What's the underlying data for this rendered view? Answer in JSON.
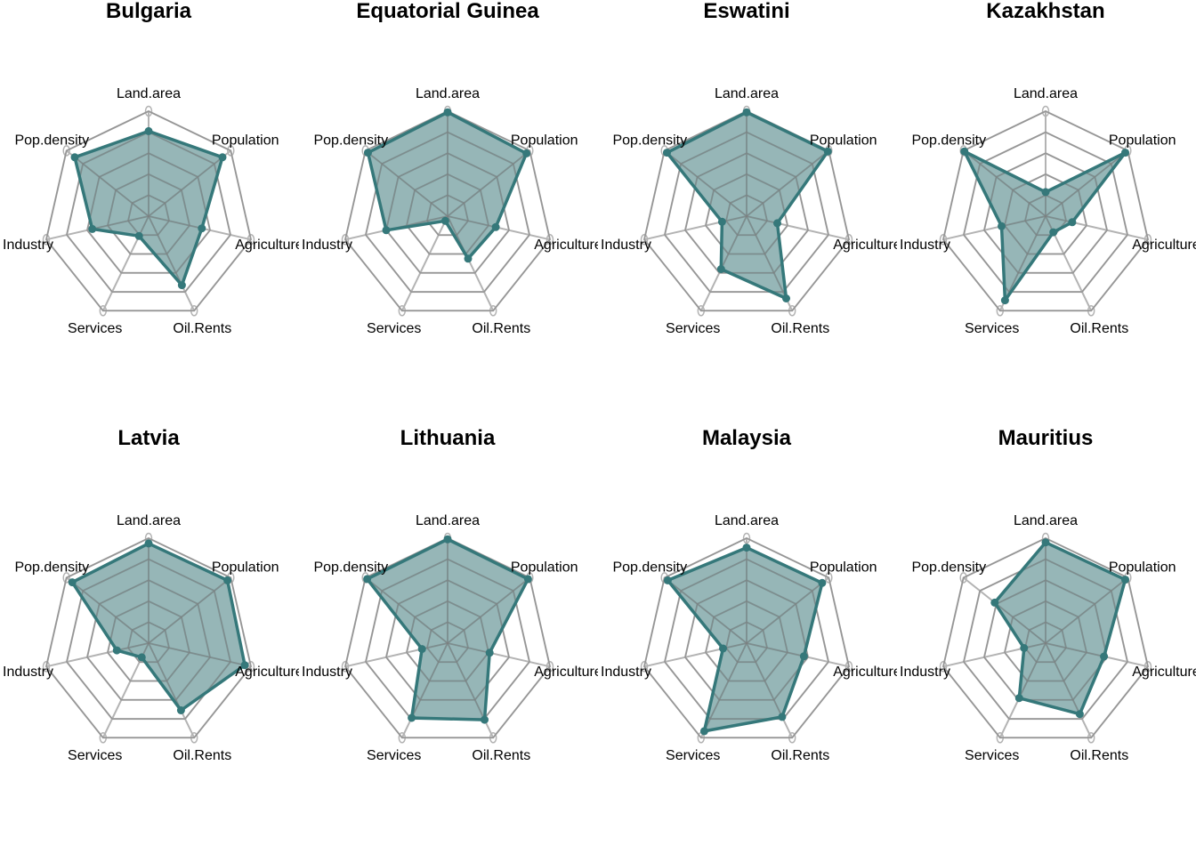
{
  "chart_data": {
    "type": "radar",
    "axes": [
      "Land.area",
      "Population",
      "Agriculture",
      "Oil.Rents",
      "Services",
      "Industry",
      "Pop.density"
    ],
    "rlim": [
      0,
      1
    ],
    "grid_levels": 5,
    "colors": {
      "fill": "#6e9a9b",
      "line": "#35787a",
      "grid": "#b3b3b3",
      "inner_grid": "#7c7c7c"
    },
    "panels": [
      {
        "title": "Bulgaria",
        "values": [
          0.81,
          0.9,
          0.52,
          0.73,
          0.21,
          0.55,
          0.9
        ]
      },
      {
        "title": "Equatorial Guinea",
        "values": [
          0.99,
          0.96,
          0.47,
          0.45,
          0.05,
          0.6,
          0.97
        ]
      },
      {
        "title": "Eswatini",
        "values": [
          0.99,
          0.99,
          0.3,
          0.87,
          0.56,
          0.24,
          0.97
        ]
      },
      {
        "title": "Kazakhstan",
        "values": [
          0.23,
          0.97,
          0.26,
          0.17,
          0.89,
          0.43,
          0.99
        ]
      },
      {
        "title": "Latvia",
        "values": [
          0.95,
          0.96,
          0.94,
          0.71,
          0.15,
          0.31,
          0.93
        ]
      },
      {
        "title": "Lithuania",
        "values": [
          0.99,
          0.98,
          0.41,
          0.81,
          0.79,
          0.25,
          0.98
        ]
      },
      {
        "title": "Malaysia",
        "values": [
          0.91,
          0.92,
          0.56,
          0.78,
          0.93,
          0.23,
          0.96
        ]
      },
      {
        "title": "Mauritius",
        "values": [
          0.96,
          0.97,
          0.57,
          0.75,
          0.58,
          0.21,
          0.62
        ]
      }
    ]
  }
}
